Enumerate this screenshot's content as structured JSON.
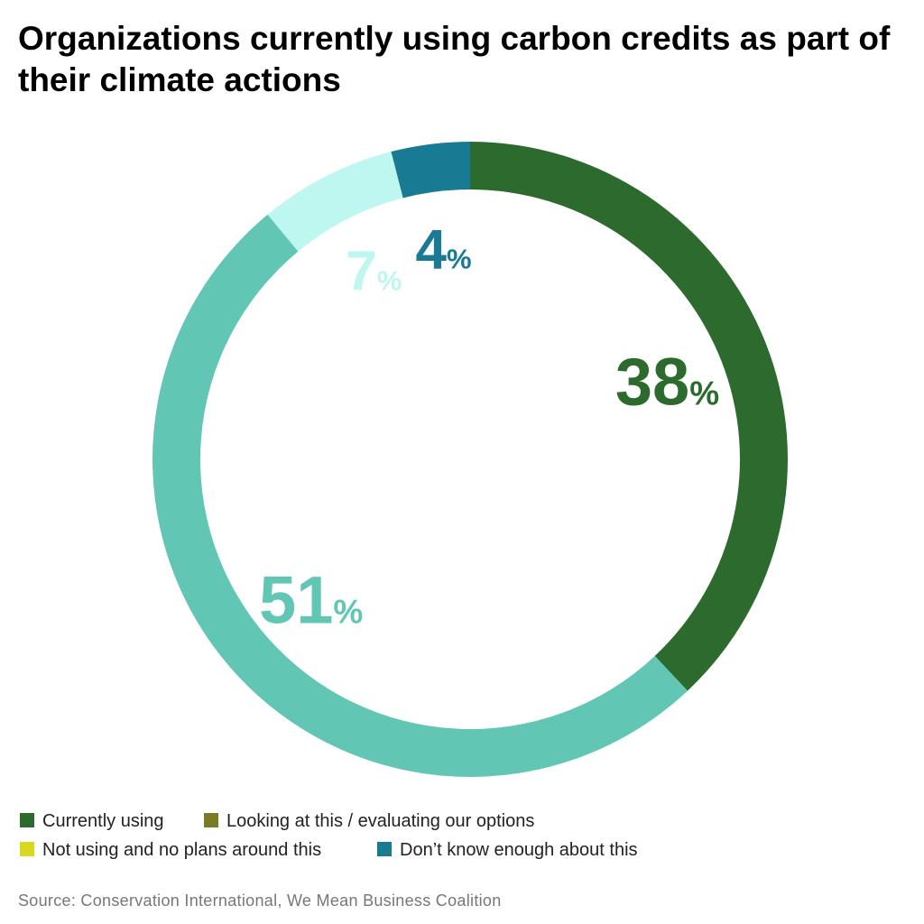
{
  "chart_data": {
    "type": "donut",
    "title": "Organizations currently using carbon credits as part of their climate actions",
    "categories": [
      "Currently using",
      "Looking at this / evaluating our options",
      "Not using and no plans around this",
      "Don’t know enough about this"
    ],
    "values": [
      38,
      51,
      7,
      4
    ],
    "value_labels": [
      "38%",
      "51%",
      "7%",
      "4%"
    ],
    "colors": [
      "#2c6a2e",
      "#62c6b5",
      "#bdf7f0",
      "#187a93"
    ],
    "legend_colors": [
      "#2c6a2e",
      "#7d7a25",
      "#d6d91f",
      "#187a93"
    ],
    "source": "Source:  Conservation International, We Mean Business Coalition"
  }
}
